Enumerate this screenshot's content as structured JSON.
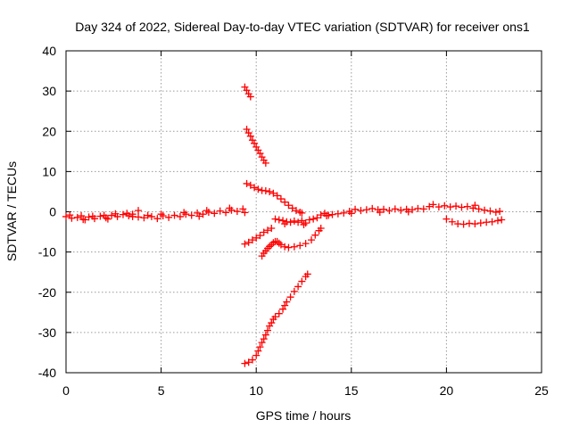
{
  "chart_data": {
    "type": "scatter",
    "title": "Day 324 of 2022, Sidereal Day-to-day VTEC variation (SDTVAR) for receiver ons1",
    "xlabel": "GPS time / hours",
    "ylabel": "SDTVAR / TECUs",
    "xlim": [
      0,
      25
    ],
    "ylim": [
      -40,
      40
    ],
    "xticks": [
      0,
      5,
      10,
      15,
      20,
      25
    ],
    "yticks": [
      -40,
      -30,
      -20,
      -10,
      0,
      10,
      20,
      30,
      40
    ],
    "xtick_labels": [
      "0",
      "5",
      "10",
      "15",
      "20",
      "25"
    ],
    "ytick_labels": [
      "-40",
      "-30",
      "-20",
      "-10",
      "0",
      "10",
      "20",
      "30",
      "40"
    ],
    "grid": true,
    "marker": "plus",
    "marker_color": "#ff0000",
    "series": [
      {
        "name": "early-band",
        "points": [
          [
            0.0,
            -1.2
          ],
          [
            0.3,
            -1.6
          ],
          [
            0.6,
            -1.4
          ],
          [
            0.9,
            -1.9
          ],
          [
            1.2,
            -1.3
          ],
          [
            1.5,
            -1.7
          ],
          [
            1.8,
            -1.1
          ],
          [
            2.1,
            -1.5
          ],
          [
            2.4,
            -0.9
          ],
          [
            2.7,
            -1.2
          ],
          [
            3.0,
            -0.7
          ],
          [
            3.3,
            -1.0
          ],
          [
            3.5,
            -0.6
          ],
          [
            0.2,
            -0.8
          ],
          [
            0.8,
            -1.0
          ],
          [
            1.4,
            -1.1
          ],
          [
            2.0,
            -0.9
          ],
          [
            2.6,
            -0.5
          ],
          [
            3.2,
            -0.4
          ],
          [
            1.0,
            -2.0
          ],
          [
            2.2,
            -1.8
          ]
        ]
      },
      {
        "name": "morning-band",
        "points": [
          [
            3.5,
            -1.2
          ],
          [
            3.8,
            -1.3
          ],
          [
            3.8,
            0.3
          ],
          [
            4.1,
            -1.5
          ],
          [
            4.5,
            -1.2
          ],
          [
            4.8,
            -1.7
          ],
          [
            5.1,
            -1.0
          ],
          [
            5.4,
            -1.4
          ],
          [
            5.7,
            -0.9
          ],
          [
            6.0,
            -1.2
          ],
          [
            6.3,
            -0.6
          ],
          [
            6.6,
            -0.9
          ],
          [
            6.9,
            -0.3
          ],
          [
            7.2,
            -0.6
          ],
          [
            7.5,
            -0.1
          ],
          [
            7.8,
            -0.4
          ],
          [
            8.1,
            0.2
          ],
          [
            8.4,
            -0.2
          ],
          [
            8.7,
            0.4
          ],
          [
            9.0,
            0.1
          ],
          [
            9.3,
            0.7
          ],
          [
            9.4,
            -0.2
          ],
          [
            5.0,
            -0.6
          ],
          [
            6.2,
            -0.2
          ],
          [
            7.4,
            0.3
          ],
          [
            8.6,
            0.9
          ],
          [
            4.3,
            -0.9
          ],
          [
            7.0,
            -1.1
          ]
        ]
      },
      {
        "name": "steep-upper",
        "points": [
          [
            9.4,
            31.0
          ],
          [
            9.5,
            30.2
          ],
          [
            9.6,
            29.3
          ],
          [
            9.7,
            28.6
          ]
        ]
      },
      {
        "name": "upper-decline",
        "points": [
          [
            9.5,
            20.5
          ],
          [
            9.6,
            19.6
          ],
          [
            9.7,
            18.8
          ],
          [
            9.8,
            17.8
          ],
          [
            9.9,
            17.0
          ],
          [
            10.0,
            16.1
          ],
          [
            10.1,
            15.3
          ],
          [
            10.2,
            14.5
          ],
          [
            10.3,
            13.6
          ],
          [
            10.4,
            12.8
          ],
          [
            10.5,
            12.1
          ]
        ]
      },
      {
        "name": "mid-decline",
        "points": [
          [
            9.5,
            7.0
          ],
          [
            9.7,
            6.6
          ],
          [
            9.9,
            6.0
          ],
          [
            10.1,
            5.6
          ],
          [
            10.3,
            5.3
          ],
          [
            10.5,
            5.2
          ],
          [
            10.7,
            5.0
          ],
          [
            10.9,
            4.6
          ],
          [
            11.1,
            4.0
          ],
          [
            11.3,
            3.2
          ],
          [
            11.5,
            2.4
          ],
          [
            11.7,
            1.6
          ],
          [
            11.9,
            0.9
          ],
          [
            12.1,
            0.3
          ],
          [
            12.3,
            -0.1
          ],
          [
            12.4,
            -0.3
          ]
        ]
      },
      {
        "name": "lower-rising",
        "points": [
          [
            9.4,
            -8.0
          ],
          [
            9.6,
            -7.6
          ],
          [
            9.8,
            -7.0
          ],
          [
            10.0,
            -6.5
          ],
          [
            10.2,
            -5.9
          ],
          [
            10.4,
            -5.1
          ],
          [
            10.6,
            -4.6
          ],
          [
            10.8,
            -4.1
          ]
        ]
      },
      {
        "name": "near-zero-arc",
        "points": [
          [
            11.0,
            -1.8
          ],
          [
            11.2,
            -2.0
          ],
          [
            11.4,
            -2.2
          ],
          [
            11.6,
            -2.5
          ],
          [
            11.8,
            -2.6
          ],
          [
            12.0,
            -2.3
          ],
          [
            12.2,
            -2.6
          ],
          [
            12.4,
            -2.2
          ],
          [
            12.6,
            -2.8
          ],
          [
            12.8,
            -2.0
          ],
          [
            13.0,
            -1.8
          ],
          [
            13.2,
            -1.5
          ],
          [
            13.4,
            -0.8
          ],
          [
            13.6,
            -0.4
          ],
          [
            13.8,
            -0.9
          ],
          [
            11.5,
            -3.0
          ],
          [
            12.5,
            -3.2
          ]
        ]
      },
      {
        "name": "lower-arc",
        "points": [
          [
            10.3,
            -11.0
          ],
          [
            10.4,
            -10.3
          ],
          [
            10.5,
            -9.7
          ],
          [
            10.6,
            -9.1
          ],
          [
            10.7,
            -8.6
          ],
          [
            10.8,
            -8.2
          ],
          [
            10.9,
            -7.7
          ],
          [
            11.0,
            -7.4
          ],
          [
            11.1,
            -7.4
          ],
          [
            11.2,
            -7.8
          ],
          [
            11.3,
            -8.2
          ],
          [
            11.5,
            -8.7
          ],
          [
            11.7,
            -8.9
          ],
          [
            12.0,
            -8.7
          ],
          [
            12.3,
            -8.4
          ],
          [
            12.6,
            -7.9
          ],
          [
            12.9,
            -7.0
          ],
          [
            13.1,
            -5.8
          ],
          [
            13.3,
            -4.7
          ],
          [
            13.4,
            -4.1
          ]
        ]
      },
      {
        "name": "deep-rise",
        "points": [
          [
            9.4,
            -37.7
          ],
          [
            9.6,
            -37.4
          ],
          [
            9.8,
            -36.8
          ],
          [
            10.0,
            -35.7
          ],
          [
            10.1,
            -34.6
          ],
          [
            10.2,
            -33.6
          ],
          [
            10.3,
            -32.5
          ],
          [
            10.4,
            -31.6
          ],
          [
            10.5,
            -30.6
          ],
          [
            10.6,
            -29.5
          ],
          [
            10.7,
            -28.4
          ],
          [
            10.8,
            -27.6
          ],
          [
            10.9,
            -26.7
          ],
          [
            11.0,
            -26.1
          ],
          [
            11.2,
            -25.3
          ],
          [
            11.4,
            -24.2
          ],
          [
            11.5,
            -23.3
          ],
          [
            11.6,
            -22.4
          ],
          [
            11.8,
            -21.2
          ],
          [
            12.0,
            -19.8
          ],
          [
            12.2,
            -18.6
          ],
          [
            12.4,
            -17.3
          ],
          [
            12.6,
            -16.1
          ],
          [
            12.7,
            -15.5
          ]
        ]
      },
      {
        "name": "afternoon-band",
        "points": [
          [
            13.7,
            -1.0
          ],
          [
            14.0,
            -0.7
          ],
          [
            14.3,
            -0.5
          ],
          [
            14.6,
            -0.3
          ],
          [
            14.9,
            0.1
          ],
          [
            15.2,
            0.6
          ],
          [
            15.5,
            0.3
          ],
          [
            15.8,
            0.5
          ],
          [
            16.1,
            0.8
          ],
          [
            16.4,
            0.5
          ],
          [
            16.7,
            0.6
          ],
          [
            17.0,
            0.3
          ],
          [
            17.3,
            0.7
          ],
          [
            17.6,
            0.4
          ],
          [
            17.9,
            0.6
          ],
          [
            18.2,
            0.5
          ],
          [
            18.5,
            0.8
          ],
          [
            18.8,
            0.7
          ],
          [
            19.1,
            1.3
          ],
          [
            19.3,
            1.8
          ],
          [
            19.6,
            1.2
          ],
          [
            19.9,
            1.5
          ],
          [
            20.2,
            1.2
          ],
          [
            20.5,
            1.4
          ],
          [
            20.8,
            1.1
          ],
          [
            21.1,
            1.3
          ],
          [
            21.4,
            0.9
          ],
          [
            21.7,
            0.7
          ],
          [
            22.0,
            0.4
          ],
          [
            22.3,
            0.2
          ],
          [
            22.6,
            -0.1
          ],
          [
            22.8,
            0.1
          ],
          [
            15.0,
            -0.4
          ],
          [
            16.5,
            -0.1
          ],
          [
            18.0,
            0.0
          ],
          [
            21.5,
            1.6
          ]
        ]
      },
      {
        "name": "late-lower",
        "points": [
          [
            20.0,
            -1.8
          ],
          [
            20.3,
            -2.5
          ],
          [
            20.6,
            -3.0
          ],
          [
            20.9,
            -3.1
          ],
          [
            21.2,
            -2.9
          ],
          [
            21.5,
            -3.0
          ],
          [
            21.8,
            -2.8
          ],
          [
            22.1,
            -2.6
          ],
          [
            22.4,
            -2.5
          ],
          [
            22.7,
            -2.2
          ],
          [
            22.9,
            -2.0
          ]
        ]
      }
    ]
  }
}
